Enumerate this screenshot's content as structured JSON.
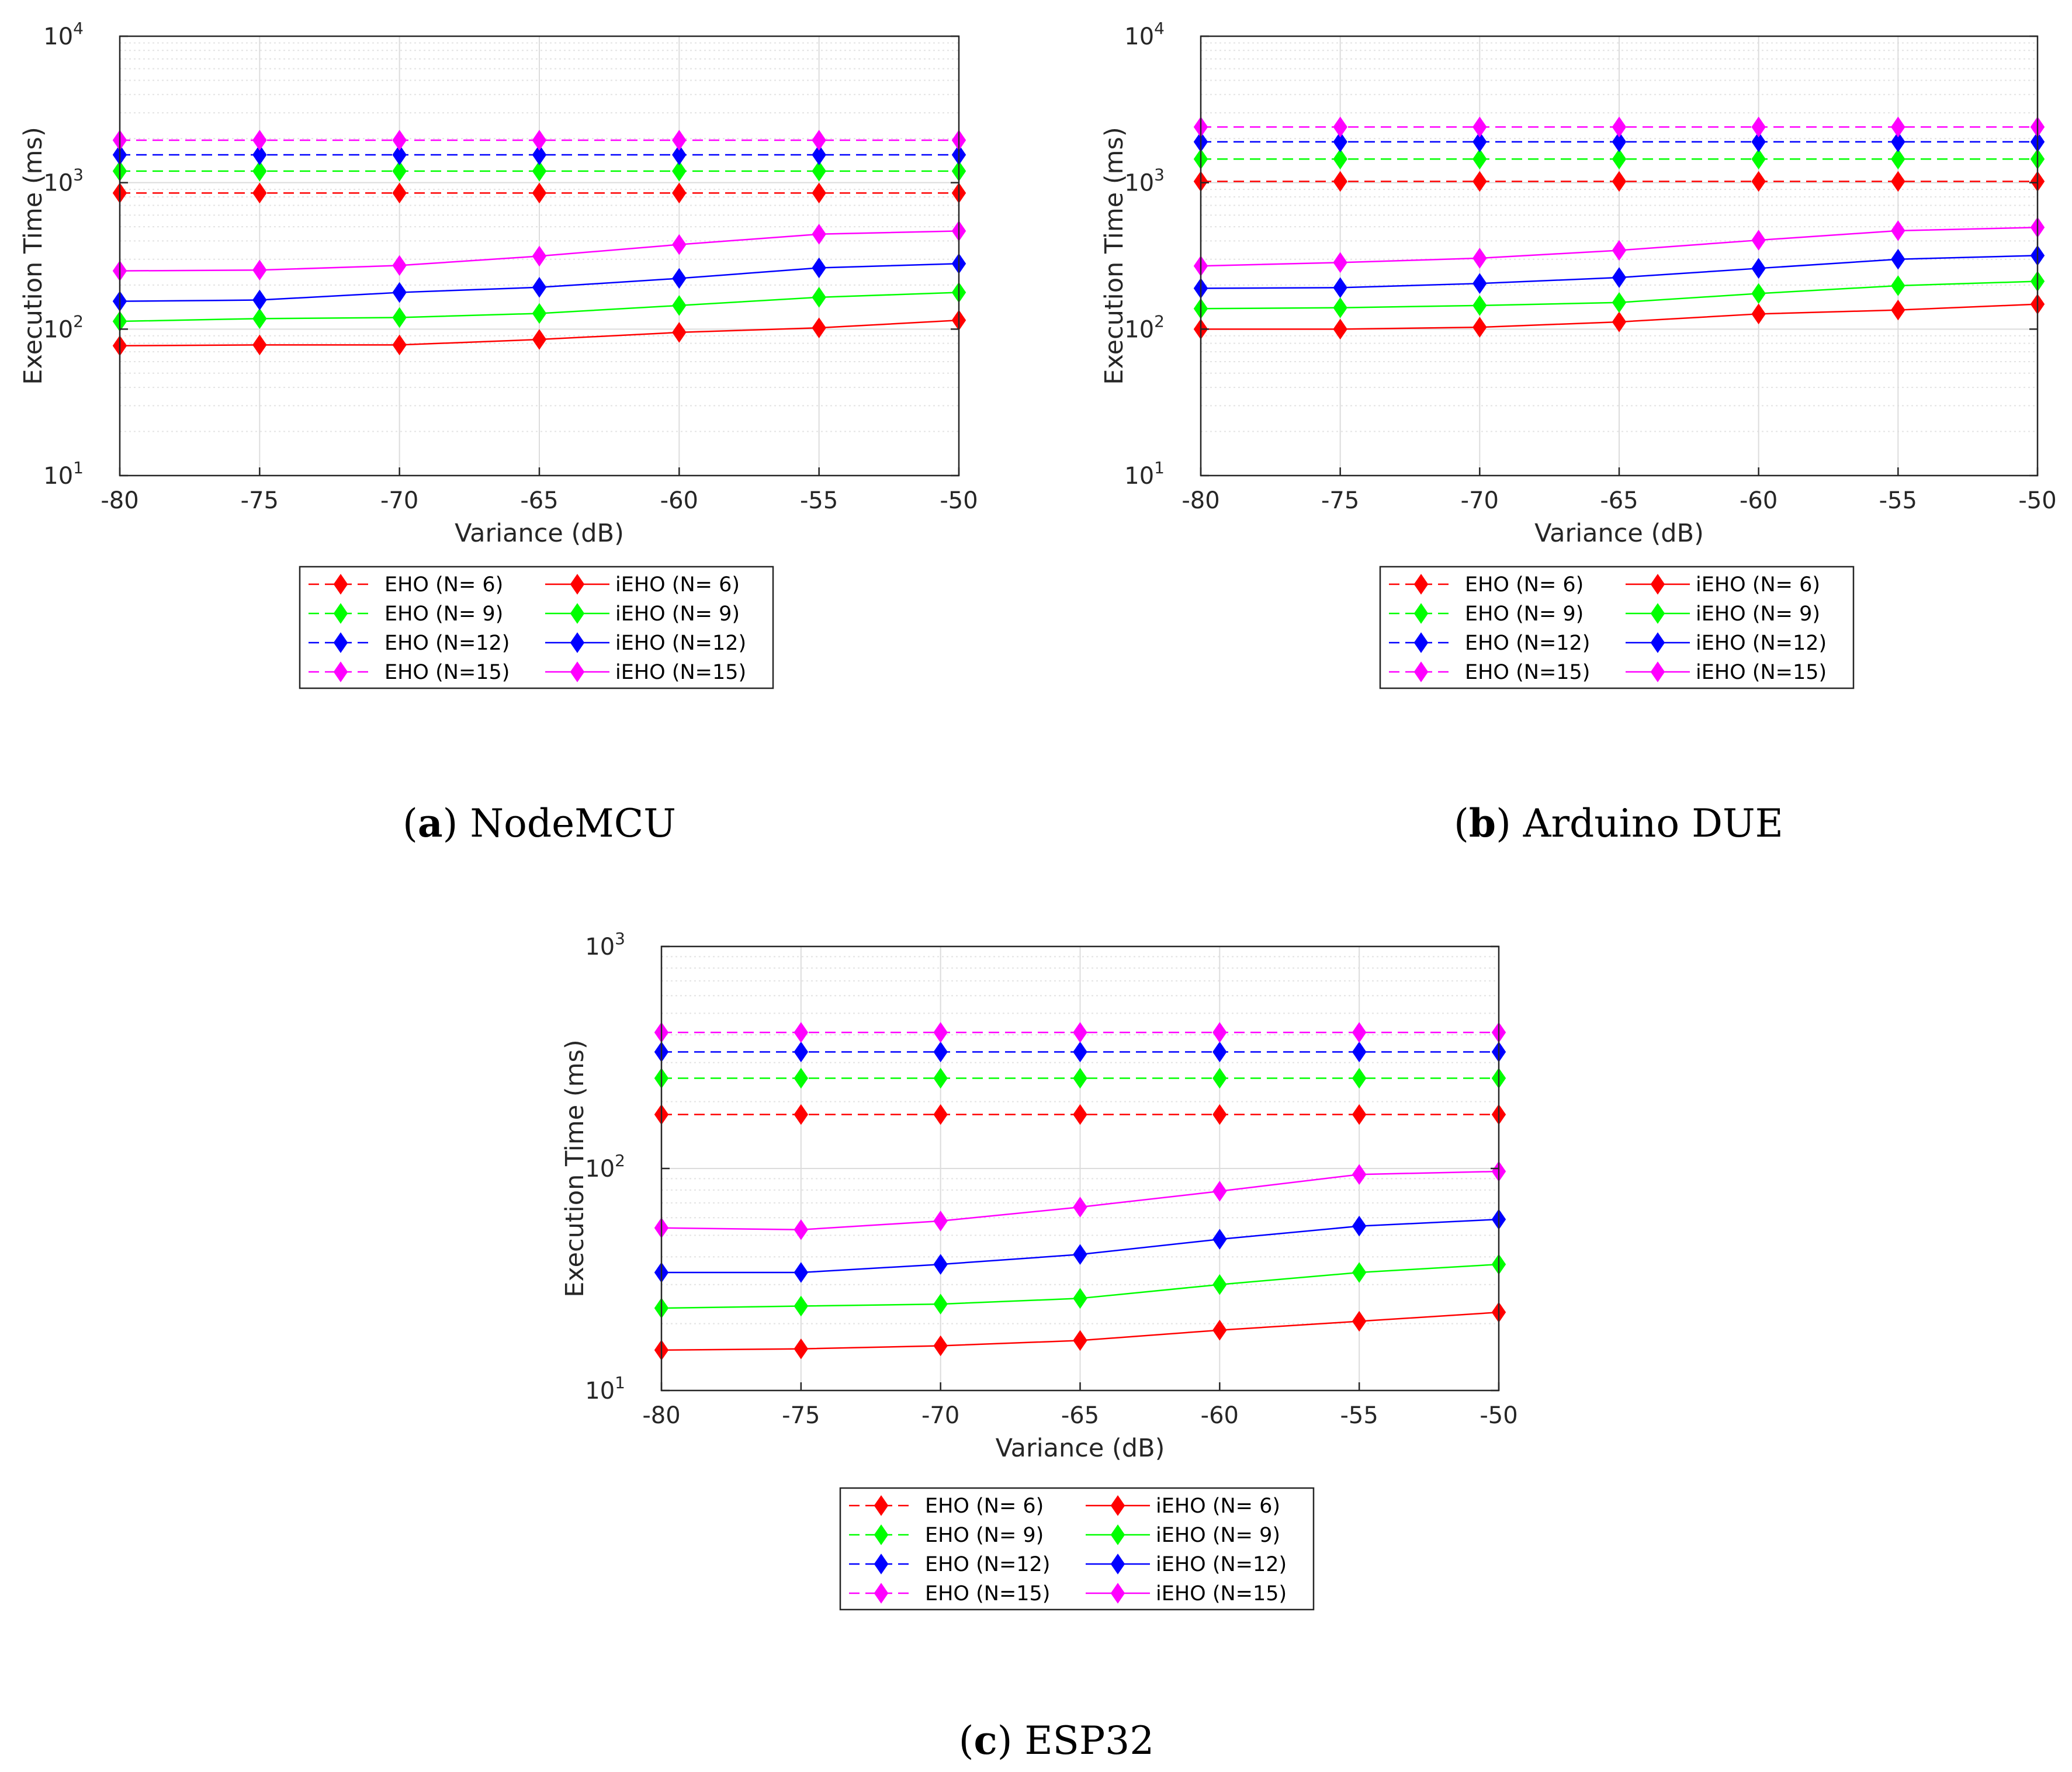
{
  "chart_data": [
    {
      "type": "line",
      "caption_letter": "a",
      "caption_text": "NodeMCU",
      "xlabel": "Variance (dB)",
      "ylabel": "Execution Time (ms)",
      "x": [
        -80,
        -75,
        -70,
        -65,
        -60,
        -55,
        -50
      ],
      "x_tick_labels": [
        "-80",
        "-75",
        "-70",
        "-65",
        "-60",
        "-55",
        "-50"
      ],
      "xlim": [
        -80,
        -50
      ],
      "yscale": "log",
      "ylim": [
        10,
        10000
      ],
      "y_tick_exponents": [
        "1",
        "2",
        "3",
        "4"
      ],
      "grid": true,
      "legend": "below",
      "series": [
        {
          "name": "EHO (N= 6)",
          "color": "#ff0000",
          "dash": true,
          "values": [
            850,
            850,
            850,
            850,
            850,
            850,
            850
          ]
        },
        {
          "name": "EHO (N= 9)",
          "color": "#00ff00",
          "dash": true,
          "values": [
            1200,
            1200,
            1200,
            1200,
            1200,
            1200,
            1200
          ]
        },
        {
          "name": "EHO (N=12)",
          "color": "#0000ff",
          "dash": true,
          "values": [
            1550,
            1550,
            1550,
            1550,
            1550,
            1550,
            1550
          ]
        },
        {
          "name": "EHO (N=15)",
          "color": "#ff00ff",
          "dash": true,
          "values": [
            1950,
            1950,
            1950,
            1950,
            1950,
            1950,
            1950
          ]
        },
        {
          "name": "iEHO (N= 6)",
          "color": "#ff0000",
          "dash": false,
          "values": [
            77,
            78,
            78,
            85,
            95,
            102,
            115
          ]
        },
        {
          "name": "iEHO (N= 9)",
          "color": "#00ff00",
          "dash": false,
          "values": [
            113,
            118,
            120,
            128,
            145,
            165,
            178
          ]
        },
        {
          "name": "iEHO (N=12)",
          "color": "#0000ff",
          "dash": false,
          "values": [
            155,
            158,
            178,
            193,
            222,
            262,
            280
          ]
        },
        {
          "name": "iEHO (N=15)",
          "color": "#ff00ff",
          "dash": false,
          "values": [
            250,
            253,
            272,
            315,
            378,
            445,
            468
          ]
        }
      ]
    },
    {
      "type": "line",
      "caption_letter": "b",
      "caption_text": "Arduino DUE",
      "xlabel": "Variance (dB)",
      "ylabel": "Execution Time (ms)",
      "x": [
        -80,
        -75,
        -70,
        -65,
        -60,
        -55,
        -50
      ],
      "x_tick_labels": [
        "-80",
        "-75",
        "-70",
        "-65",
        "-60",
        "-55",
        "-50"
      ],
      "xlim": [
        -80,
        -50
      ],
      "yscale": "log",
      "ylim": [
        10,
        10000
      ],
      "y_tick_exponents": [
        "1",
        "2",
        "3",
        "4"
      ],
      "grid": true,
      "legend": "below",
      "series": [
        {
          "name": "EHO (N= 6)",
          "color": "#ff0000",
          "dash": true,
          "values": [
            1020,
            1020,
            1020,
            1020,
            1020,
            1020,
            1020
          ]
        },
        {
          "name": "EHO (N= 9)",
          "color": "#00ff00",
          "dash": true,
          "values": [
            1450,
            1450,
            1450,
            1450,
            1450,
            1450,
            1450
          ]
        },
        {
          "name": "EHO (N=12)",
          "color": "#0000ff",
          "dash": true,
          "values": [
            1900,
            1900,
            1900,
            1900,
            1900,
            1900,
            1900
          ]
        },
        {
          "name": "EHO (N=15)",
          "color": "#ff00ff",
          "dash": true,
          "values": [
            2400,
            2400,
            2400,
            2400,
            2400,
            2400,
            2400
          ]
        },
        {
          "name": "iEHO (N= 6)",
          "color": "#ff0000",
          "dash": false,
          "values": [
            100,
            100,
            103,
            112,
            127,
            135,
            148
          ]
        },
        {
          "name": "iEHO (N= 9)",
          "color": "#00ff00",
          "dash": false,
          "values": [
            138,
            140,
            145,
            152,
            175,
            198,
            212
          ]
        },
        {
          "name": "iEHO (N=12)",
          "color": "#0000ff",
          "dash": false,
          "values": [
            190,
            192,
            205,
            225,
            260,
            300,
            318
          ]
        },
        {
          "name": "iEHO (N=15)",
          "color": "#ff00ff",
          "dash": false,
          "values": [
            270,
            285,
            305,
            345,
            405,
            470,
            495
          ]
        }
      ]
    },
    {
      "type": "line",
      "caption_letter": "c",
      "caption_text": "ESP32",
      "xlabel": "Variance (dB)",
      "ylabel": "Execution Time (ms)",
      "x": [
        -80,
        -75,
        -70,
        -65,
        -60,
        -55,
        -50
      ],
      "x_tick_labels": [
        "-80",
        "-75",
        "-70",
        "-65",
        "-60",
        "-55",
        "-50"
      ],
      "xlim": [
        -80,
        -50
      ],
      "yscale": "log",
      "ylim": [
        10,
        1000
      ],
      "y_tick_exponents": [
        "1",
        "2",
        "3"
      ],
      "grid": true,
      "legend": "below",
      "series": [
        {
          "name": "EHO (N= 6)",
          "color": "#ff0000",
          "dash": true,
          "values": [
            175,
            175,
            175,
            175,
            175,
            175,
            175
          ]
        },
        {
          "name": "EHO (N= 9)",
          "color": "#00ff00",
          "dash": true,
          "values": [
            255,
            255,
            255,
            255,
            255,
            255,
            255
          ]
        },
        {
          "name": "EHO (N=12)",
          "color": "#0000ff",
          "dash": true,
          "values": [
            335,
            335,
            335,
            335,
            335,
            335,
            335
          ]
        },
        {
          "name": "EHO (N=15)",
          "color": "#ff00ff",
          "dash": true,
          "values": [
            410,
            410,
            410,
            410,
            410,
            410,
            410
          ]
        },
        {
          "name": "iEHO (N= 6)",
          "color": "#ff0000",
          "dash": false,
          "values": [
            15.2,
            15.4,
            15.9,
            16.8,
            18.7,
            20.5,
            22.5
          ]
        },
        {
          "name": "iEHO (N= 9)",
          "color": "#00ff00",
          "dash": false,
          "values": [
            23.5,
            24,
            24.5,
            26,
            30,
            34,
            37
          ]
        },
        {
          "name": "iEHO (N=12)",
          "color": "#0000ff",
          "dash": false,
          "values": [
            34,
            34,
            37,
            41,
            48,
            55,
            59
          ]
        },
        {
          "name": "iEHO (N=15)",
          "color": "#ff00ff",
          "dash": false,
          "values": [
            54,
            53,
            58,
            67,
            79,
            94,
            97
          ]
        }
      ]
    }
  ]
}
